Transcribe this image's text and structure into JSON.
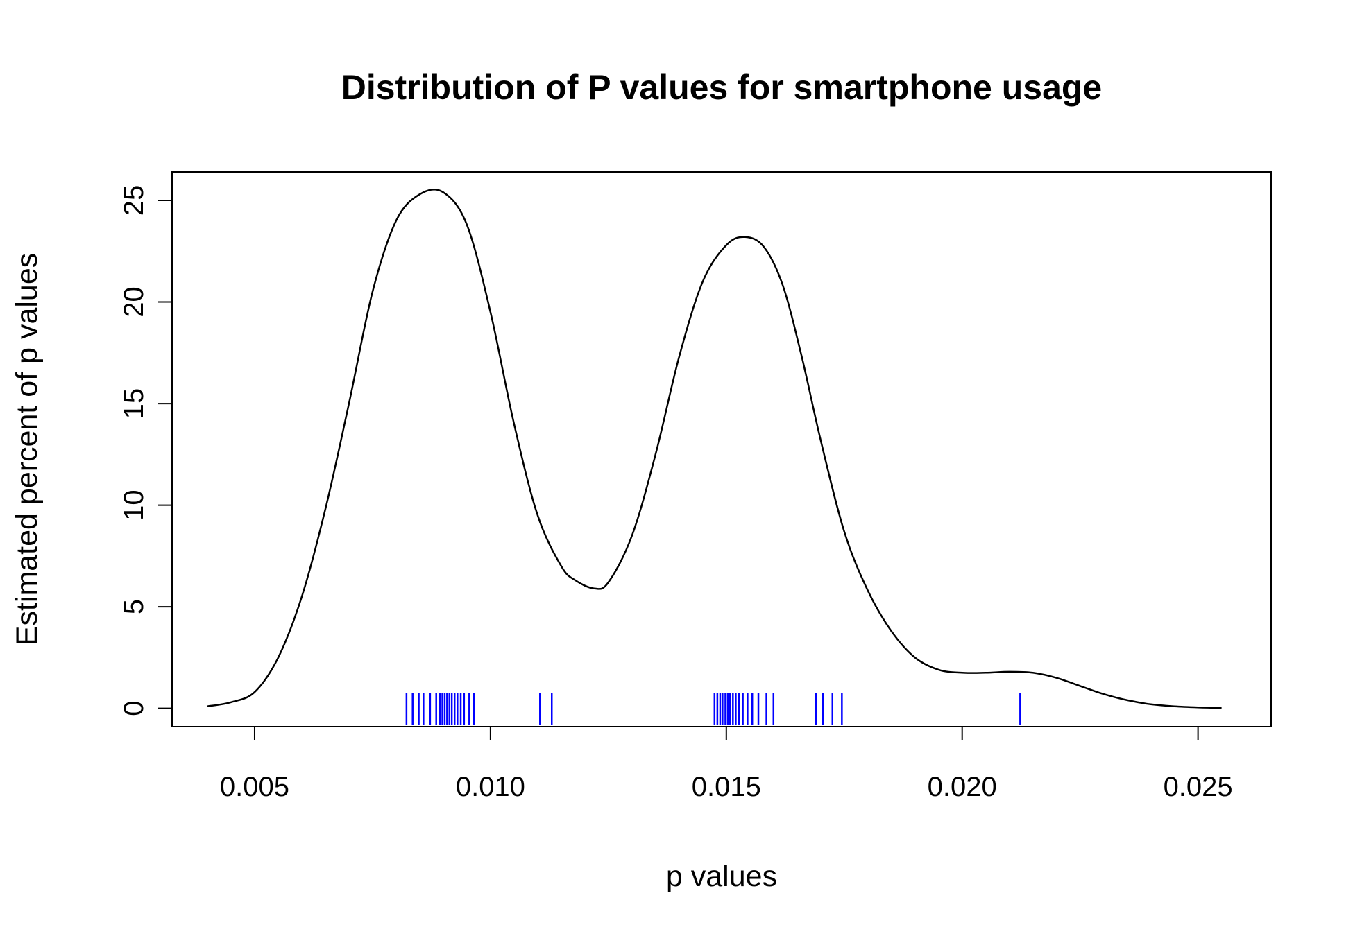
{
  "chart_data": {
    "type": "line",
    "title": "Distribution of P values for smartphone usage",
    "xlabel": "p values",
    "ylabel": "Estimated percent of p values",
    "xlim": [
      0.00325,
      0.02655
    ],
    "ylim": [
      -0.9,
      26.4
    ],
    "x_ticks": [
      0.005,
      0.01,
      0.015,
      0.02,
      0.025
    ],
    "x_tick_labels": [
      "0.005",
      "0.010",
      "0.015",
      "0.020",
      "0.025"
    ],
    "y_ticks": [
      0,
      5,
      10,
      15,
      20,
      25
    ],
    "y_tick_labels": [
      "0",
      "5",
      "10",
      "15",
      "20",
      "25"
    ],
    "grid": false,
    "series": [
      {
        "color": "#000000",
        "x": [
          0.004,
          0.0045,
          0.005,
          0.0055,
          0.006,
          0.0065,
          0.007,
          0.0075,
          0.008,
          0.0085,
          0.009,
          0.0095,
          0.01,
          0.0105,
          0.011,
          0.0115,
          0.0118,
          0.0122,
          0.0125,
          0.013,
          0.0135,
          0.014,
          0.0145,
          0.015,
          0.0154,
          0.0158,
          0.0162,
          0.0166,
          0.017,
          0.0175,
          0.018,
          0.0185,
          0.019,
          0.0195,
          0.02,
          0.0205,
          0.021,
          0.0215,
          0.022,
          0.0225,
          0.023,
          0.0235,
          0.024,
          0.0245,
          0.025,
          0.0255
        ],
        "y": [
          0.1,
          0.3,
          0.8,
          2.5,
          5.5,
          9.8,
          15.0,
          20.5,
          24.0,
          25.3,
          25.4,
          23.8,
          19.5,
          14.0,
          9.5,
          7.0,
          6.3,
          5.9,
          6.2,
          8.5,
          12.5,
          17.3,
          21.0,
          22.8,
          23.2,
          22.7,
          20.8,
          17.3,
          13.2,
          8.7,
          5.8,
          3.8,
          2.5,
          1.9,
          1.75,
          1.75,
          1.8,
          1.75,
          1.5,
          1.1,
          0.7,
          0.4,
          0.2,
          0.1,
          0.05,
          0.02
        ]
      }
    ],
    "rug": {
      "color": "#0000ff",
      "values": [
        0.00822,
        0.00835,
        0.00848,
        0.00858,
        0.00872,
        0.00885,
        0.00893,
        0.00898,
        0.00903,
        0.00908,
        0.00913,
        0.00918,
        0.00924,
        0.0093,
        0.00937,
        0.00944,
        0.00955,
        0.00965,
        0.01105,
        0.0113,
        0.01475,
        0.01481,
        0.01487,
        0.01492,
        0.01498,
        0.01503,
        0.01508,
        0.01514,
        0.0152,
        0.01527,
        0.01535,
        0.01545,
        0.01555,
        0.01568,
        0.01585,
        0.016,
        0.0169,
        0.01705,
        0.01725,
        0.01745,
        0.02123
      ]
    }
  }
}
